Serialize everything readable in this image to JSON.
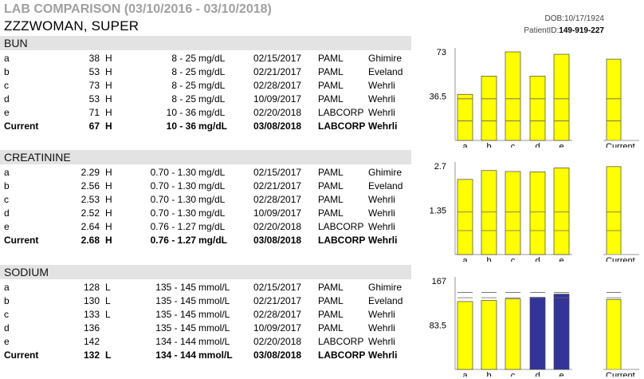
{
  "header": {
    "title": "LAB COMPARISON (03/10/2016 - 03/10/2018)",
    "patient_name": "ZZZWOMAN, SUPER",
    "dob_label": "DOB:",
    "dob": "10/17/1924",
    "patient_id_label": "PatientID:",
    "patient_id": "149-919-227"
  },
  "colors": {
    "normal": "#ffff00",
    "abnormal_dark": "#333399",
    "header_bg": "#e3e3e3"
  },
  "sections": [
    {
      "name": "BUN",
      "rows": [
        {
          "label": "a",
          "value": "38",
          "flag": "H",
          "range": "8 - 25",
          "unit": "mg/dL",
          "date": "02/15/2017",
          "lab": "PAML",
          "doctor": "Ghimire"
        },
        {
          "label": "b",
          "value": "53",
          "flag": "H",
          "range": "8 - 25",
          "unit": "mg/dL",
          "date": "02/21/2017",
          "lab": "PAML",
          "doctor": "Eveland"
        },
        {
          "label": "c",
          "value": "73",
          "flag": "H",
          "range": "8 - 25",
          "unit": "mg/dL",
          "date": "02/28/2017",
          "lab": "PAML",
          "doctor": "Wehrli"
        },
        {
          "label": "d",
          "value": "53",
          "flag": "H",
          "range": "8 - 25",
          "unit": "mg/dL",
          "date": "10/09/2017",
          "lab": "PAML",
          "doctor": "Wehrli"
        },
        {
          "label": "e",
          "value": "71",
          "flag": "H",
          "range": "10 - 36",
          "unit": "mg/dL",
          "date": "02/20/2018",
          "lab": "LABCORP",
          "doctor": "Wehrli"
        },
        {
          "label": "Current",
          "value": "67",
          "flag": "H",
          "range": "10 - 36",
          "unit": "mg/dL",
          "date": "03/08/2018",
          "lab": "LABCORP",
          "doctor": "Wehrli"
        }
      ],
      "chart": {
        "ymax_label": "73",
        "ymid_label": "36.5",
        "ymax": 73,
        "lines": [
          0.22,
          0.47
        ],
        "values": [
          38,
          53,
          73,
          53,
          71
        ],
        "current": 67,
        "colors": [
          "normal",
          "normal",
          "normal",
          "normal",
          "normal"
        ],
        "current_color": "normal",
        "xlabels": [
          "a",
          "b",
          "c",
          "d",
          "e"
        ],
        "current_label": "Current"
      }
    },
    {
      "name": "CREATININE",
      "rows": [
        {
          "label": "a",
          "value": "2.29",
          "flag": "H",
          "range": "0.70 - 1.30",
          "unit": "mg/dL",
          "date": "02/15/2017",
          "lab": "PAML",
          "doctor": "Ghimire"
        },
        {
          "label": "b",
          "value": "2.56",
          "flag": "H",
          "range": "0.70 - 1.30",
          "unit": "mg/dL",
          "date": "02/21/2017",
          "lab": "PAML",
          "doctor": "Eveland"
        },
        {
          "label": "c",
          "value": "2.53",
          "flag": "H",
          "range": "0.70 - 1.30",
          "unit": "mg/dL",
          "date": "02/28/2017",
          "lab": "PAML",
          "doctor": "Wehrli"
        },
        {
          "label": "d",
          "value": "2.52",
          "flag": "H",
          "range": "0.70 - 1.30",
          "unit": "mg/dL",
          "date": "10/09/2017",
          "lab": "PAML",
          "doctor": "Wehrli"
        },
        {
          "label": "e",
          "value": "2.64",
          "flag": "H",
          "range": "0.76 - 1.27",
          "unit": "mg/dL",
          "date": "02/20/2018",
          "lab": "LABCORP",
          "doctor": "Wehrli"
        },
        {
          "label": "Current",
          "value": "2.68",
          "flag": "H",
          "range": "0.76 - 1.27",
          "unit": "mg/dL",
          "date": "03/08/2018",
          "lab": "LABCORP",
          "doctor": "Wehrli"
        }
      ],
      "chart": {
        "ymax_label": "2.7",
        "ymid_label": "1.35",
        "ymax": 2.7,
        "lines": [
          0.27,
          0.48
        ],
        "values": [
          2.29,
          2.56,
          2.53,
          2.52,
          2.64
        ],
        "current": 2.68,
        "colors": [
          "normal",
          "normal",
          "normal",
          "normal",
          "normal"
        ],
        "current_color": "normal",
        "xlabels": [
          "a",
          "b",
          "c",
          "d",
          "e"
        ],
        "current_label": "Current"
      }
    },
    {
      "name": "SODIUM",
      "rows": [
        {
          "label": "a",
          "value": "128",
          "flag": "L",
          "range": "135 - 145",
          "unit": "mmol/L",
          "date": "02/15/2017",
          "lab": "PAML",
          "doctor": "Ghimire"
        },
        {
          "label": "b",
          "value": "130",
          "flag": "L",
          "range": "135 - 145",
          "unit": "mmol/L",
          "date": "02/21/2017",
          "lab": "PAML",
          "doctor": "Eveland"
        },
        {
          "label": "c",
          "value": "133",
          "flag": "L",
          "range": "135 - 145",
          "unit": "mmol/L",
          "date": "02/28/2017",
          "lab": "PAML",
          "doctor": "Wehrli"
        },
        {
          "label": "d",
          "value": "136",
          "flag": "",
          "range": "135 - 145",
          "unit": "mmol/L",
          "date": "10/09/2017",
          "lab": "PAML",
          "doctor": "Wehrli"
        },
        {
          "label": "e",
          "value": "142",
          "flag": "",
          "range": "134 - 144",
          "unit": "mmol/L",
          "date": "02/20/2018",
          "lab": "LABCORP",
          "doctor": "Wehrli"
        },
        {
          "label": "Current",
          "value": "132",
          "flag": "L",
          "range": "134 - 144",
          "unit": "mmol/L",
          "date": "03/08/2018",
          "lab": "LABCORP",
          "doctor": "Wehrli"
        }
      ],
      "chart": {
        "ymax_label": "167",
        "ymid_label": "83.5",
        "ymax": 167,
        "lines": [
          0.81,
          0.87
        ],
        "values": [
          128,
          130,
          133,
          136,
          142
        ],
        "current": 132,
        "colors": [
          "normal",
          "normal",
          "normal",
          "abnormal_dark",
          "abnormal_dark"
        ],
        "current_color": "normal",
        "xlabels": [
          "a",
          "b",
          "c",
          "d",
          "e"
        ],
        "current_label": "Current"
      }
    }
  ]
}
